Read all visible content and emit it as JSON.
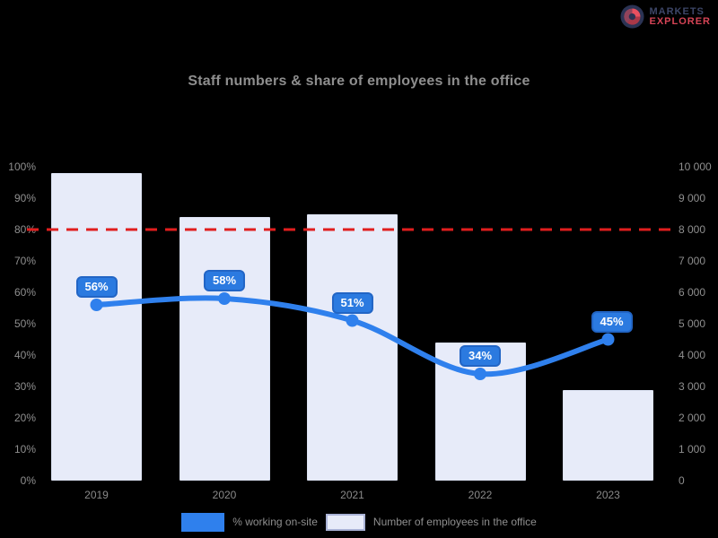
{
  "page": {
    "background": "#000000"
  },
  "logo": {
    "line1": "MARKETS",
    "line2": "EXPLORER",
    "icon": "donut-chart-icon",
    "icon_colors": {
      "base": "#2b3354",
      "segment1": "#e85060",
      "segment2": "#a93848"
    }
  },
  "chart_data": {
    "type": "bar",
    "combo": "bar+line",
    "title": "Staff numbers & share of employees in the office",
    "categories": [
      "2019",
      "2020",
      "2021",
      "2022",
      "2023"
    ],
    "series": [
      {
        "name": "Number of employees in the office",
        "type": "bar",
        "axis": "right",
        "values": [
          9800,
          8400,
          8500,
          4400,
          2900
        ],
        "color": "#e7ebf9"
      },
      {
        "name": "% working on-site",
        "type": "line",
        "axis": "left",
        "values": [
          56,
          58,
          51,
          34,
          45
        ],
        "labels": [
          "56%",
          "58%",
          "51%",
          "34%",
          "45%"
        ],
        "color": "#2f80ed"
      }
    ],
    "left_axis": {
      "min": 0,
      "max": 100,
      "ticks_top_to_bottom": [
        "100%",
        "90%",
        "80%",
        "70%",
        "60%",
        "50%",
        "40%",
        "30%",
        "20%",
        "10%",
        "0%"
      ]
    },
    "right_axis": {
      "min": 0,
      "max": 10000,
      "ticks_top_to_bottom": [
        "10 000",
        "9 000",
        "8 000",
        "7 000",
        "6 000",
        "5 000",
        "4 000",
        "3 000",
        "2 000",
        "1 000",
        "0"
      ]
    },
    "threshold": {
      "value": 80,
      "axis": "left",
      "color": "#e01e1e",
      "style": "dashed"
    },
    "legend_position": "bottom",
    "grid": false,
    "background": "#000000",
    "colors": {
      "line": "#2f80ed",
      "bar": "#e7ebf9",
      "bubble_fill": "#2b7ae0",
      "bubble_border": "#2265c5",
      "threshold": "#e01e1e",
      "text": "#8e8e8e"
    }
  }
}
